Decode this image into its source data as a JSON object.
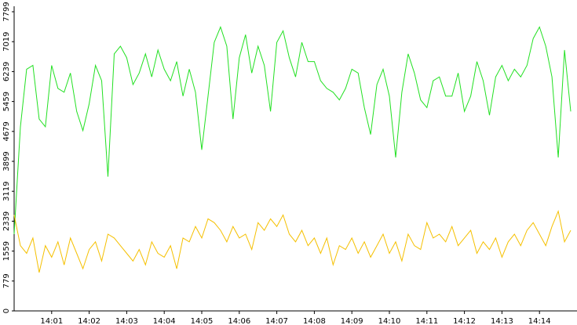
{
  "chart_data": {
    "type": "line",
    "categories": [
      null,
      null,
      null,
      null,
      null,
      null,
      "14:01",
      null,
      null,
      null,
      null,
      null,
      "14:02",
      null,
      null,
      null,
      null,
      null,
      "14:03",
      null,
      null,
      null,
      null,
      null,
      "14:04",
      null,
      null,
      null,
      null,
      null,
      "14:05",
      null,
      null,
      null,
      null,
      null,
      "14:06",
      null,
      null,
      null,
      null,
      null,
      "14:07",
      null,
      null,
      null,
      null,
      null,
      "14:08",
      null,
      null,
      null,
      null,
      null,
      "14:09",
      null,
      null,
      null,
      null,
      null,
      "14:10",
      null,
      null,
      null,
      null,
      null,
      "14:11",
      null,
      null,
      null,
      null,
      null,
      "14:12",
      null,
      null,
      null,
      null,
      null,
      "14:13",
      null,
      null,
      null,
      null,
      null,
      "14:14",
      null,
      null,
      null,
      null,
      null
    ],
    "series": [
      {
        "color": "#22e022",
        "values": [
          2000,
          4800,
          6300,
          6400,
          5000,
          4800,
          6400,
          5800,
          5700,
          6200,
          5200,
          4700,
          5400,
          6400,
          6000,
          3500,
          6700,
          6900,
          6600,
          5900,
          6200,
          6700,
          6100,
          6800,
          6300,
          6000,
          6500,
          5600,
          6300,
          5700,
          4200,
          5600,
          7000,
          7400,
          6900,
          5000,
          6600,
          7200,
          6200,
          6900,
          6400,
          5200,
          7000,
          7300,
          6600,
          6100,
          7000,
          6500,
          6500,
          6000,
          5800,
          5700,
          5500,
          5800,
          6300,
          6200,
          5300,
          4600,
          5900,
          6300,
          5600,
          4000,
          5700,
          6700,
          6200,
          5500,
          5300,
          6000,
          6100,
          5600,
          5600,
          6200,
          5200,
          5600,
          6500,
          6000,
          5100,
          6100,
          6400,
          6000,
          6300,
          6100,
          6400,
          7100,
          7400,
          6900,
          6100,
          4000,
          6800,
          5200
        ]
      },
      {
        "color": "#f5c000",
        "values": [
          2500,
          1700,
          1500,
          1900,
          1000,
          1700,
          1400,
          1800,
          1200,
          1900,
          1500,
          1100,
          1600,
          1800,
          1300,
          2000,
          1900,
          1700,
          1500,
          1300,
          1600,
          1200,
          1800,
          1500,
          1400,
          1700,
          1100,
          1900,
          1800,
          2200,
          1900,
          2400,
          2300,
          2100,
          1800,
          2200,
          1900,
          2000,
          1600,
          2300,
          2100,
          2400,
          2200,
          2500,
          2000,
          1800,
          2100,
          1700,
          1900,
          1500,
          1900,
          1200,
          1700,
          1600,
          1900,
          1500,
          1800,
          1400,
          1700,
          2000,
          1500,
          1800,
          1300,
          2000,
          1700,
          1600,
          2300,
          1900,
          2000,
          1800,
          2200,
          1700,
          1900,
          2100,
          1500,
          1800,
          1600,
          1900,
          1400,
          1800,
          2000,
          1700,
          2100,
          2300,
          2000,
          1700,
          2200,
          2600,
          1800,
          2100
        ]
      }
    ],
    "ylim": [
      0,
      7799
    ],
    "yticks": [
      0,
      779,
      1559,
      2339,
      3119,
      3899,
      4679,
      5459,
      6239,
      7019,
      7799
    ]
  }
}
